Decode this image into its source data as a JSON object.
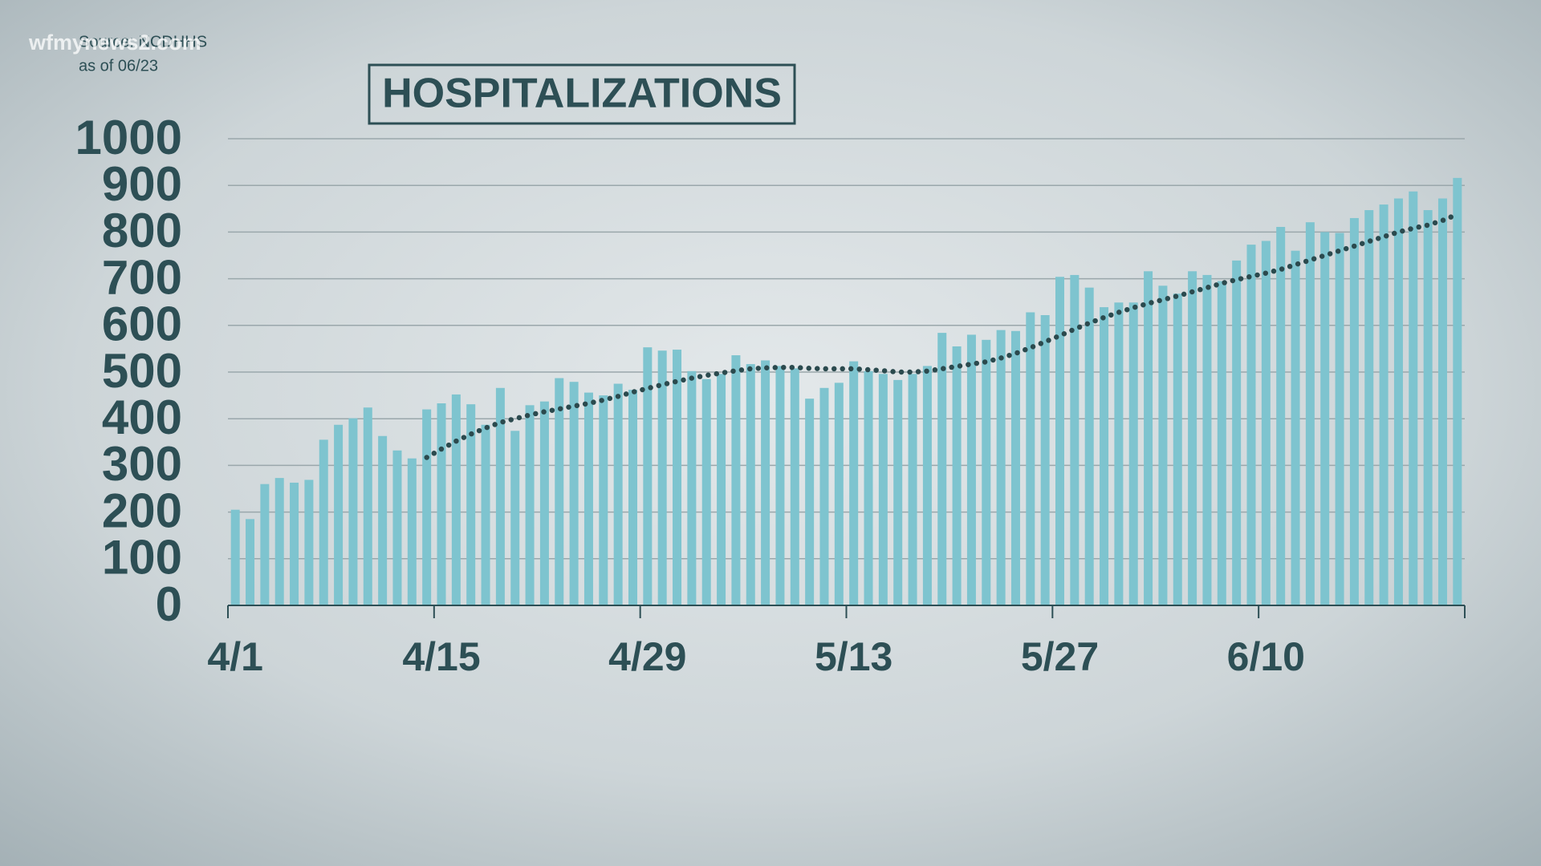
{
  "chart_data": {
    "type": "bar",
    "title": "HOSPITALIZATIONS",
    "source": "Source: NCDHHS",
    "date_note": "as of 06/23",
    "watermark": "wfmynews2.com",
    "categories": [
      "4/1",
      null,
      null,
      null,
      null,
      null,
      null,
      null,
      null,
      null,
      null,
      null,
      null,
      null,
      "4/15",
      null,
      null,
      null,
      null,
      null,
      null,
      null,
      null,
      null,
      null,
      null,
      null,
      null,
      "4/29",
      null,
      null,
      null,
      null,
      null,
      null,
      null,
      null,
      null,
      null,
      null,
      null,
      null,
      "5/13",
      null,
      null,
      null,
      null,
      null,
      null,
      null,
      null,
      null,
      null,
      null,
      null,
      null,
      "5/27",
      null,
      null,
      null,
      null,
      null,
      null,
      null,
      null,
      null,
      null,
      null,
      null,
      null,
      "6/10",
      null,
      null,
      null,
      null,
      null,
      null,
      null,
      null,
      null,
      null,
      null,
      null,
      null
    ],
    "series": [
      {
        "type": "bar",
        "color": "#7ec4cf",
        "values": [
          205,
          185,
          260,
          273,
          263,
          269,
          355,
          387,
          401,
          424,
          363,
          332,
          315,
          420,
          433,
          452,
          431,
          387,
          466,
          374,
          429,
          437,
          487,
          479,
          456,
          450,
          475,
          462,
          553,
          546,
          548,
          502,
          485,
          496,
          536,
          517,
          525,
          513,
          508,
          443,
          466,
          477,
          523,
          502,
          496,
          483,
          496,
          513,
          584,
          555,
          580,
          569,
          590,
          588,
          628,
          622,
          704,
          708,
          681,
          639,
          649,
          649,
          716,
          685,
          668,
          716,
          708,
          695,
          739,
          773,
          781,
          811,
          760,
          821,
          800,
          798,
          830,
          847,
          859,
          872,
          887,
          847,
          872,
          916
        ]
      },
      {
        "type": "line",
        "color": "#2b4a4e",
        "values": [
          null,
          null,
          null,
          null,
          null,
          null,
          null,
          null,
          null,
          null,
          null,
          null,
          null,
          317,
          335,
          352,
          367,
          380,
          392,
          400,
          408,
          415,
          421,
          427,
          433,
          440,
          448,
          457,
          465,
          473,
          480,
          487,
          493,
          498,
          503,
          507,
          509,
          510,
          510,
          508,
          507,
          507,
          507,
          505,
          503,
          500,
          500,
          502,
          507,
          512,
          517,
          522,
          530,
          540,
          552,
          565,
          578,
          592,
          605,
          617,
          628,
          638,
          647,
          655,
          663,
          672,
          681,
          690,
          698,
          705,
          712,
          720,
          730,
          740,
          750,
          760,
          770,
          780,
          790,
          800,
          808,
          815,
          825,
          838
        ]
      }
    ],
    "ylim": [
      0,
      1000
    ],
    "yticks": [
      0,
      100,
      200,
      300,
      400,
      500,
      600,
      700,
      800,
      900,
      1000
    ],
    "grid": true
  }
}
